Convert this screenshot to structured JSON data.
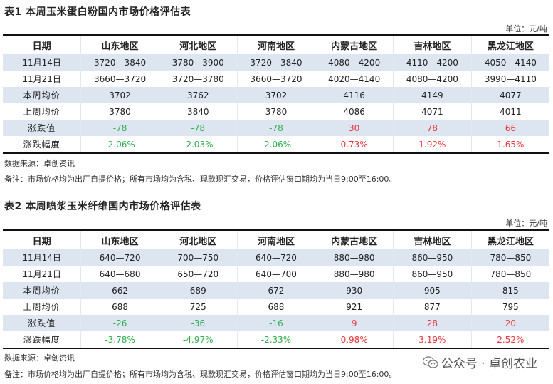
{
  "colors": {
    "shade": "#dde5f1",
    "rise": "#e8363c",
    "fall": "#2fae4f"
  },
  "table1": {
    "title": "表1  本周玉米蛋白粉国内市场价格评估表",
    "unit": "单位：元/吨",
    "headers": [
      "日期",
      "山东地区",
      "河北地区",
      "河南地区",
      "内蒙古地区",
      "吉林地区",
      "黑龙江地区"
    ],
    "rows": [
      {
        "label": "11月14日",
        "values": [
          "3720—3840",
          "3780—3900",
          "3720—3840",
          "4080—4200",
          "4110—4200",
          "4050—4140"
        ]
      },
      {
        "label": "11月21日",
        "values": [
          "3660—3720",
          "3720—3780",
          "3660—3720",
          "4020—4140",
          "4080—4200",
          "3990—4110"
        ]
      },
      {
        "label": "本周均价",
        "values": [
          "3702",
          "3762",
          "3702",
          "4116",
          "4149",
          "4077"
        ]
      },
      {
        "label": "上周均价",
        "values": [
          "3780",
          "3840",
          "3780",
          "4086",
          "4071",
          "4011"
        ]
      },
      {
        "label": "涨跌值",
        "values": [
          "-78",
          "-78",
          "-78",
          "30",
          "78",
          "66"
        ]
      },
      {
        "label": "涨跌幅度",
        "values": [
          "-2.06%",
          "-2.03%",
          "-2.06%",
          "0.73%",
          "1.92%",
          "1.65%"
        ]
      }
    ],
    "source": "数据来源：卓创资讯",
    "remark": "备注：市场价格均为出厂自提价格；所有市场均为含税、现款现汇交易，价格评估窗口期均为当日9:00至16:00。"
  },
  "table2": {
    "title": "表2  本周喷浆玉米纤维国内市场价格评估表",
    "unit": "单位：元/吨",
    "headers": [
      "日期",
      "山东地区",
      "河北地区",
      "河南地区",
      "内蒙古地区",
      "吉林地区",
      "黑龙江地区"
    ],
    "rows": [
      {
        "label": "11月14日",
        "values": [
          "640—720",
          "700—750",
          "640—720",
          "880—980",
          "860—950",
          "780—850"
        ]
      },
      {
        "label": "11月21日",
        "values": [
          "640—680",
          "650—720",
          "640—700",
          "880—980",
          "860—950",
          "780—850"
        ]
      },
      {
        "label": "本周均价",
        "values": [
          "662",
          "689",
          "672",
          "930",
          "905",
          "815"
        ]
      },
      {
        "label": "上周均价",
        "values": [
          "688",
          "725",
          "688",
          "921",
          "877",
          "795"
        ]
      },
      {
        "label": "涨跌值",
        "values": [
          "-26",
          "-36",
          "-16",
          "9",
          "28",
          "20"
        ]
      },
      {
        "label": "涨跌幅度",
        "values": [
          "-3.78%",
          "-4.97%",
          "-2.33%",
          "0.98%",
          "3.19%",
          "2.52%"
        ]
      }
    ],
    "source": "数据来源：卓创资讯",
    "remark": "备注：市场价格均为出厂自提价格；所有市场均为含税、现款现汇交易，价格评估窗口期均为当日9:00至16:00。"
  },
  "watermark": {
    "icon": "wechat-icon",
    "text": "公众号 · 卓创农业"
  }
}
